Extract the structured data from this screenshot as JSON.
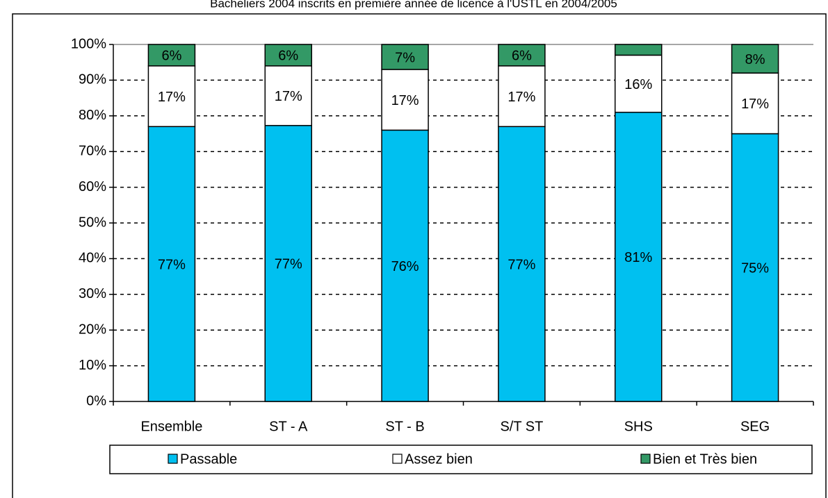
{
  "chart_data": {
    "type": "stacked_bar",
    "title": "Bacheliers 2004 inscrits en première année de licence à l'USTL en 2004/2005",
    "categories": [
      "Ensemble",
      "ST - A",
      "ST - B",
      "S/T ST",
      "SHS",
      "SEG"
    ],
    "series": [
      {
        "name": "Passable",
        "color": "#00c0f0",
        "values": [
          77,
          77.3,
          76,
          77,
          81,
          75
        ],
        "value_labels": [
          "77%",
          "77%",
          "76%",
          "77%",
          "81%",
          "75%"
        ]
      },
      {
        "name": "Assez bien",
        "color": "#ffffff",
        "values": [
          17,
          16.7,
          17,
          17,
          16,
          17
        ],
        "value_labels": [
          "17%",
          "17%",
          "17%",
          "17%",
          "16%",
          "17%"
        ]
      },
      {
        "name": "Bien et Très bien",
        "color": "#339966",
        "values": [
          6,
          6,
          7,
          6,
          3,
          8
        ],
        "value_labels": [
          "6%",
          "6%",
          "7%",
          "6%",
          null,
          "8%"
        ]
      }
    ],
    "ylim": [
      0,
      100
    ],
    "yticks": [
      {
        "value": 0,
        "label": "0%"
      },
      {
        "value": 10,
        "label": "10%"
      },
      {
        "value": 20,
        "label": "20%"
      },
      {
        "value": 30,
        "label": "30%"
      },
      {
        "value": 40,
        "label": "40%"
      },
      {
        "value": 50,
        "label": "50%"
      },
      {
        "value": 60,
        "label": "60%"
      },
      {
        "value": 70,
        "label": "70%"
      },
      {
        "value": 80,
        "label": "80%"
      },
      {
        "value": 90,
        "label": "90%"
      },
      {
        "value": 100,
        "label": "100%"
      }
    ],
    "grid": true,
    "legend": "bottom"
  }
}
